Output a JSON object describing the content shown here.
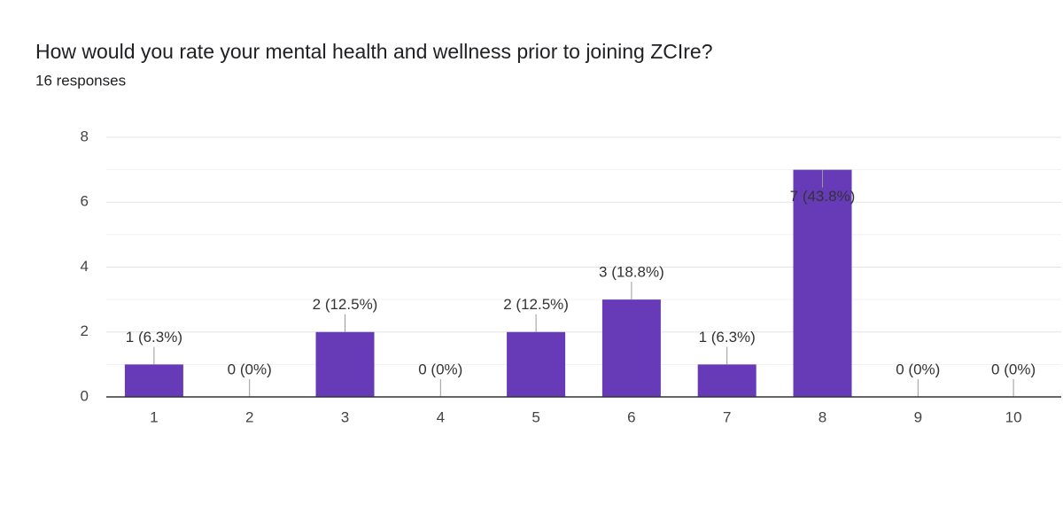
{
  "chart_data": {
    "type": "bar",
    "title": "How would you rate your mental health and wellness prior to joining ZCIre?",
    "subtitle": "16 responses",
    "categories": [
      "1",
      "2",
      "3",
      "4",
      "5",
      "6",
      "7",
      "8",
      "9",
      "10"
    ],
    "values": [
      1,
      0,
      2,
      0,
      2,
      3,
      1,
      7,
      0,
      0
    ],
    "value_labels": [
      "1 (6.3%)",
      "0 (0%)",
      "2 (12.5%)",
      "0 (0%)",
      "2 (12.5%)",
      "3 (18.8%)",
      "1 (6.3%)",
      "7 (43.8%)",
      "0 (0%)",
      "0 (0%)"
    ],
    "color": "#673ab7",
    "ylim": [
      0,
      8
    ],
    "yticks": [
      0,
      2,
      4,
      6,
      8
    ],
    "minor_yticks": [
      1,
      3,
      5,
      7
    ],
    "grid": true
  }
}
